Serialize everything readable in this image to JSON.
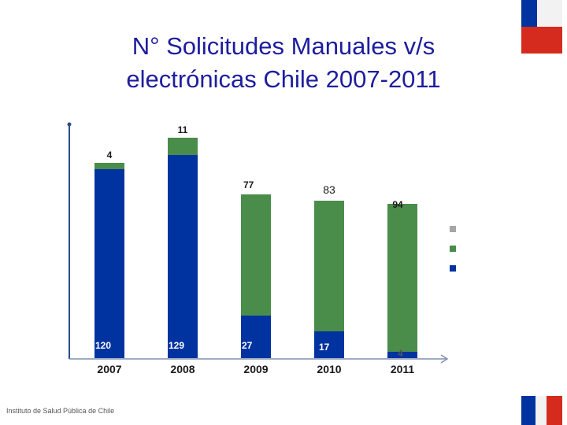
{
  "header": {
    "title_line1": "N° Solicitudes Manuales v/s",
    "title_line2": "electrónicas Chile 2007-2011"
  },
  "footer": {
    "institution": "Instituto de Salud Pública de Chile"
  },
  "colors": {
    "electronic": "#0033a0",
    "manual": "#4a8c4a",
    "legend_gray": "#a6a6a6",
    "flag_blue": "#0033a0",
    "flag_red": "#d52b1e"
  },
  "chart_data": {
    "type": "bar",
    "stacked": true,
    "categories": [
      "2007",
      "2008",
      "2009",
      "2010",
      "2011"
    ],
    "series": [
      {
        "values": [
          120,
          129,
          27,
          17,
          4
        ],
        "labels": [
          "120",
          "129",
          "27",
          "17",
          "4"
        ]
      },
      {
        "values": [
          4,
          11,
          77,
          83,
          94
        ],
        "labels": [
          "4",
          "11",
          "77",
          "83",
          "94"
        ]
      }
    ],
    "legend_placement": "right",
    "grid": false
  }
}
